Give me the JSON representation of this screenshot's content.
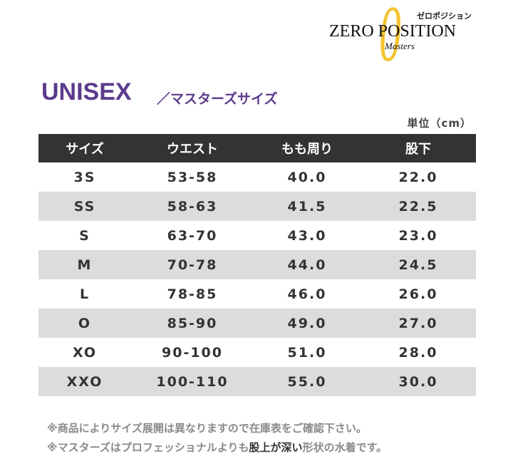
{
  "logo": {
    "mark": "0",
    "kana": "ゼロポジション",
    "brand": "ZERO POSITION",
    "sub": "Masters"
  },
  "header": {
    "title": "UNISEX",
    "subtitle": "／マスターズサイズ"
  },
  "table": {
    "unit": "単位（cm）",
    "columns": [
      "サイズ",
      "ウエスト",
      "もも周り",
      "股下"
    ],
    "rows": [
      [
        "3S",
        "53-58",
        "40.0",
        "22.0"
      ],
      [
        "SS",
        "58-63",
        "41.5",
        "22.5"
      ],
      [
        "S",
        "63-70",
        "43.0",
        "23.0"
      ],
      [
        "M",
        "70-78",
        "44.0",
        "24.5"
      ],
      [
        "L",
        "78-85",
        "46.0",
        "26.0"
      ],
      [
        "O",
        "85-90",
        "49.0",
        "27.0"
      ],
      [
        "XO",
        "90-100",
        "51.0",
        "28.0"
      ],
      [
        "XXO",
        "100-110",
        "55.0",
        "30.0"
      ]
    ]
  },
  "notes": [
    "※商品によりサイズ展開は異なりますので在庫表をご確認下さい。",
    [
      "※マスターズはプロフェッショナルよりも",
      "股上が深い",
      "形状の水着です。"
    ]
  ]
}
